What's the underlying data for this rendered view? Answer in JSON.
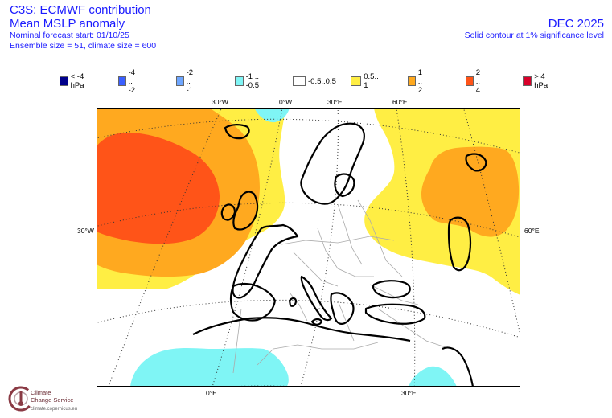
{
  "header": {
    "left": {
      "title": "C3S: ECMWF contribution",
      "subtitle": "Mean MSLP anomaly",
      "forecast_start": "Nominal forecast start: 01/10/25",
      "ensemble": "Ensemble size = 51, climate size = 600"
    },
    "right": {
      "period": "DEC 2025",
      "note": "Solid contour at 1% significance level"
    }
  },
  "legend": [
    {
      "label": "< -4 hPa",
      "color": "#00008b"
    },
    {
      "label": "-4 .. -2",
      "color": "#3a5fff"
    },
    {
      "label": "-2 .. -1",
      "color": "#6ea6ff"
    },
    {
      "label": "-1 .. -0.5",
      "color": "#7ff5f5"
    },
    {
      "label": "-0.5..0.5",
      "color": "#ffffff"
    },
    {
      "label": "0.5.. 1",
      "color": "#ffee44"
    },
    {
      "label": "1 .. 2",
      "color": "#ffa91f"
    },
    {
      "label": "2 .. 4",
      "color": "#ff5418"
    },
    {
      "label": "> 4 hPa",
      "color": "#d8002a"
    }
  ],
  "map_labels": {
    "top": [
      "30°W",
      "0°W",
      "30°E",
      "60°E"
    ],
    "left": "30°W",
    "right": "60°E",
    "bottom": [
      "0°E",
      "30°E"
    ]
  },
  "logo": {
    "line1": "Climate",
    "line2": "Change Service",
    "url": "climate.copernicus.eu"
  }
}
